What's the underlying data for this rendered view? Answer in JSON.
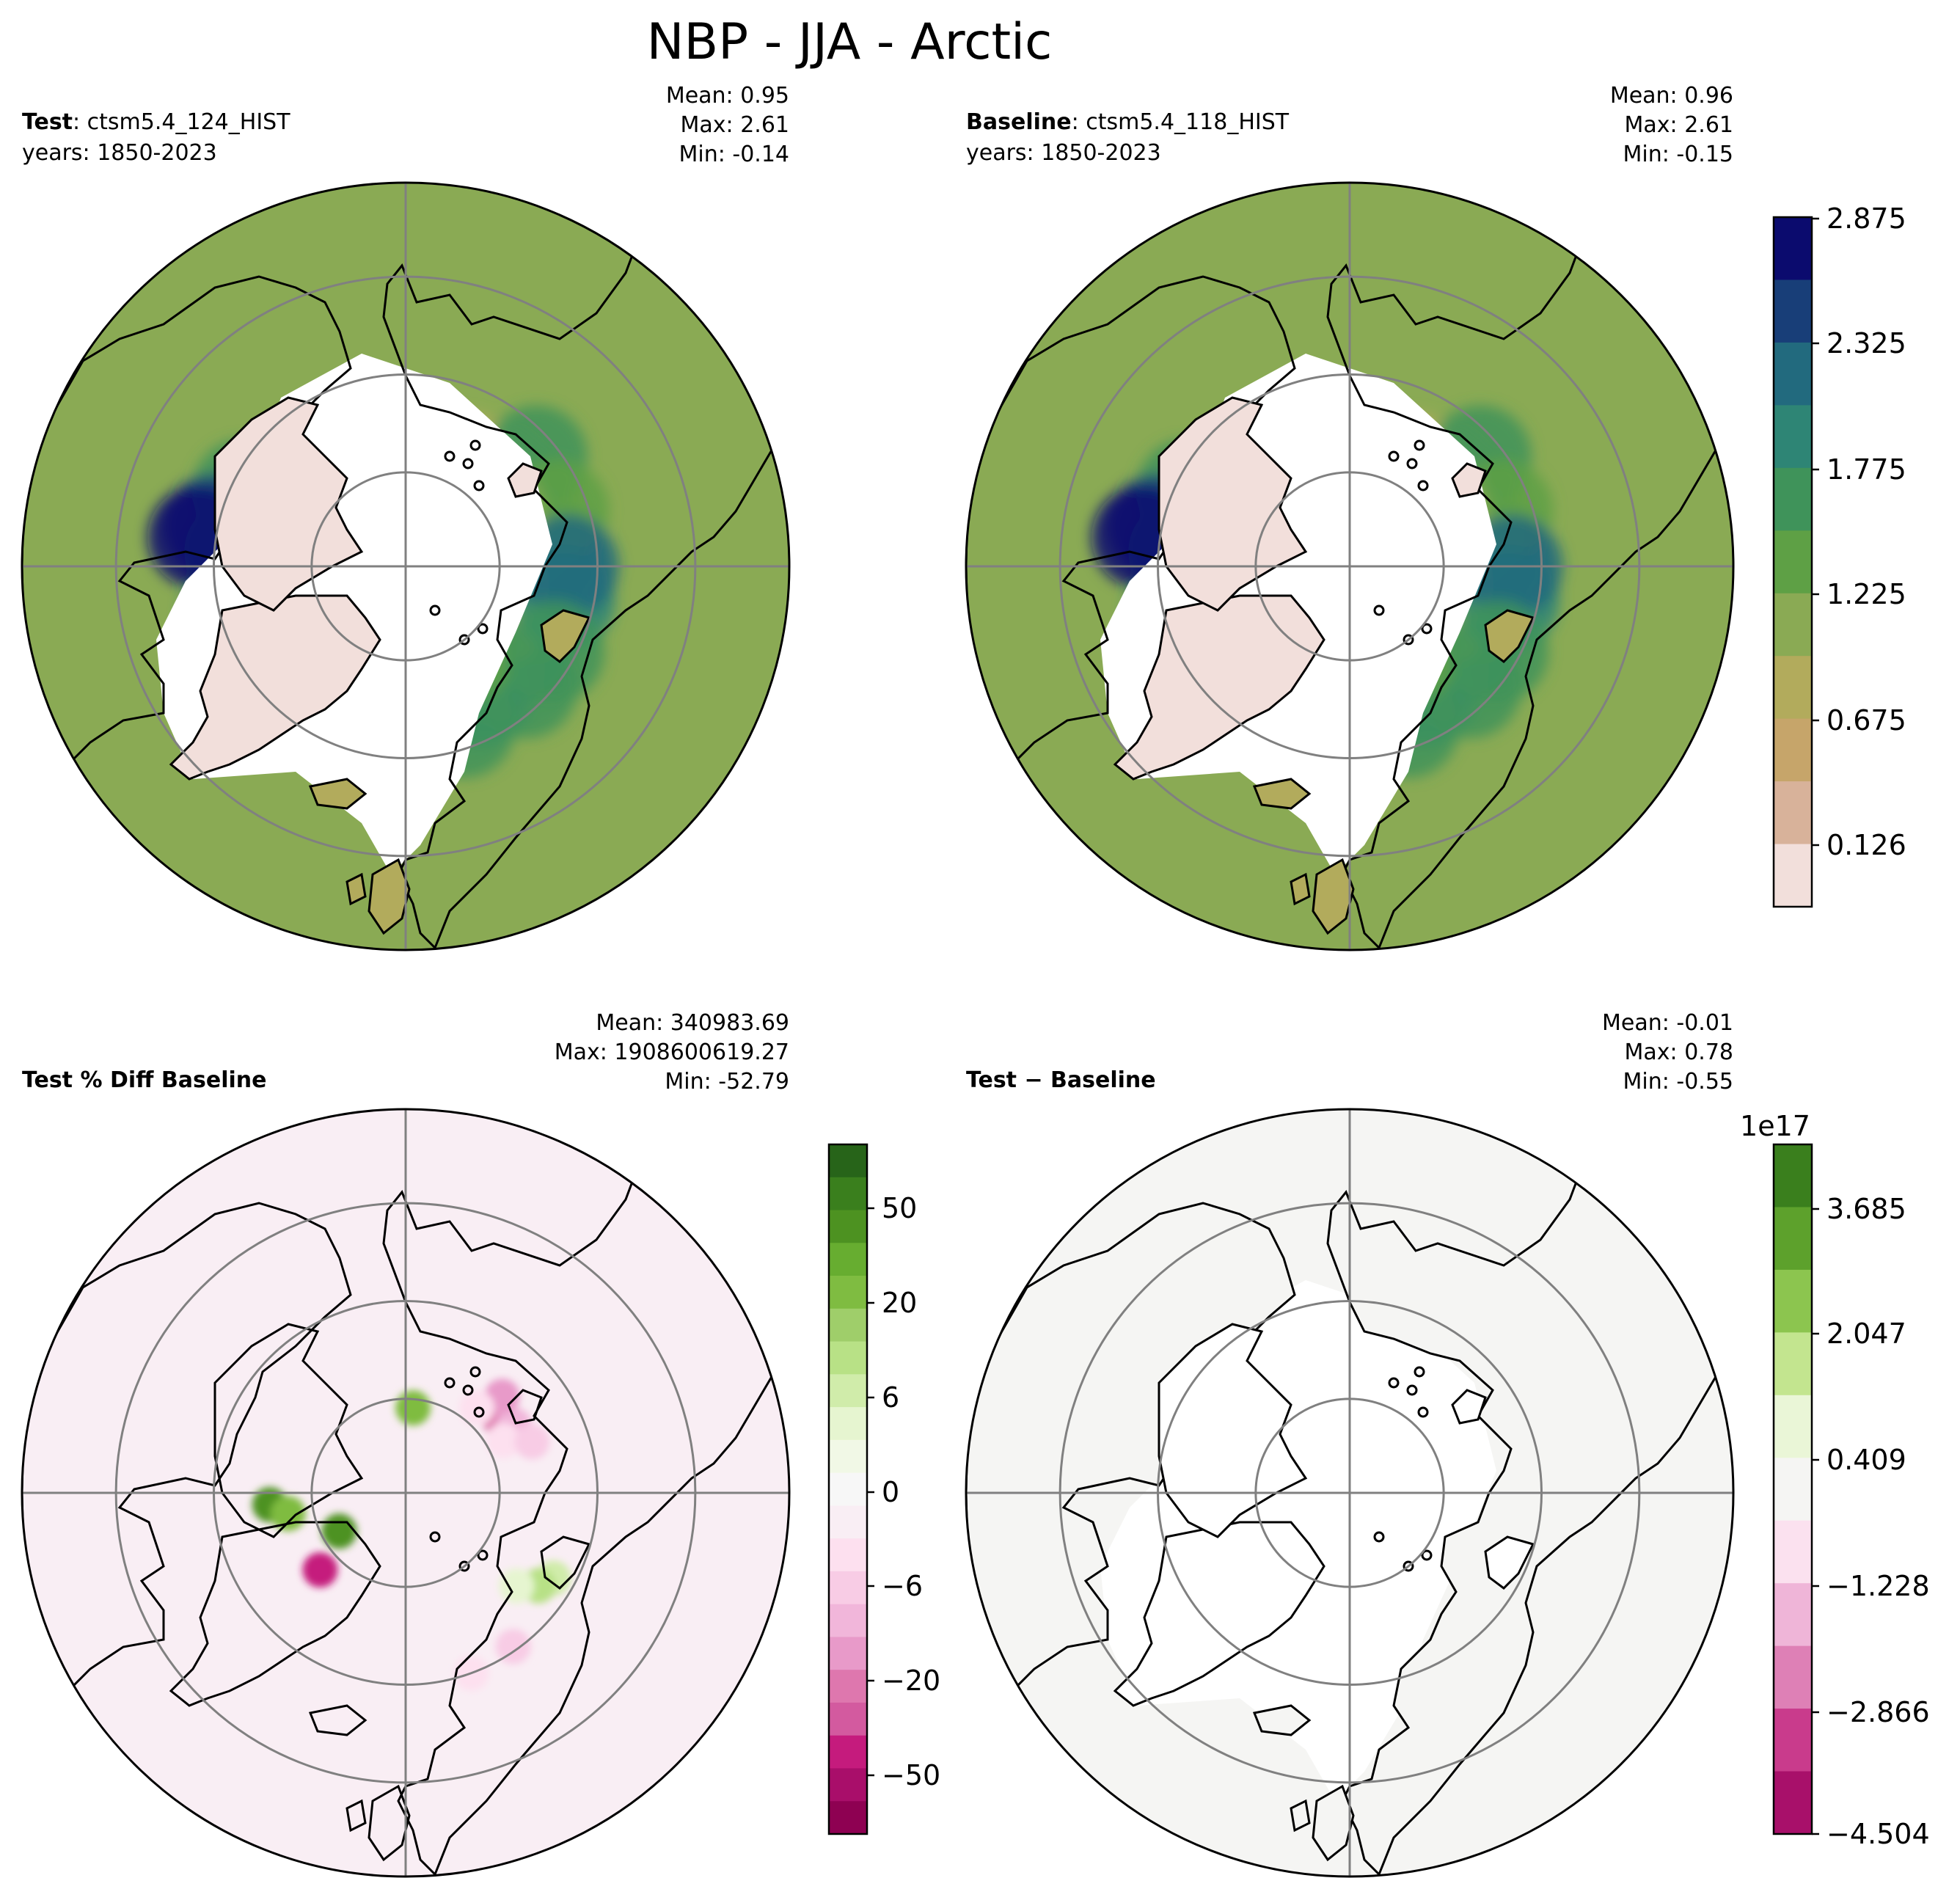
{
  "figure": {
    "title": "NBP - JJA - Arctic"
  },
  "panels": [
    {
      "id": "test",
      "label_bold": "Test",
      "label_rest": ": ctsm5.4_124_HIST",
      "years": "years: 1850-2023",
      "stats": [
        "Mean:  0.95",
        "Max:  2.61",
        "Min: -0.14"
      ],
      "field": "nbp"
    },
    {
      "id": "baseline",
      "label_bold": "Baseline",
      "label_rest": ": ctsm5.4_118_HIST",
      "years": "years: 1850-2023",
      "stats": [
        "Mean:  0.96",
        "Max:  2.61",
        "Min: -0.15"
      ],
      "field": "nbp"
    },
    {
      "id": "pctdiff",
      "label_bold": "Test % Diff Baseline",
      "label_rest": "",
      "years": "",
      "stats": [
        "Mean: 340983.69",
        "Max: 1908600619.27",
        "Min: -52.79"
      ],
      "field": "pct"
    },
    {
      "id": "diff",
      "label_bold": "Test",
      "label_rest": " − Baseline",
      "label_rest_bold": true,
      "years": "",
      "stats": [
        "Mean: -0.01",
        "Max:  0.78",
        "Min: -0.55"
      ],
      "field": "diff"
    }
  ],
  "colorbars": [
    {
      "id": "cb-nbp",
      "ticks": [
        "2.875",
        "2.325",
        "1.775",
        "1.225",
        "0.675",
        "0.126"
      ],
      "colors": [
        "#0b0b6e",
        "#183e78",
        "#226a7e",
        "#2e8575",
        "#3f935a",
        "#5ea045",
        "#8aaa54",
        "#b2ab5c",
        "#c6a56a",
        "#d8b29a",
        "#f2dfdb"
      ],
      "offset_label": ""
    },
    {
      "id": "cb-pct",
      "ticks": [
        "50",
        "20",
        "6",
        "0",
        "−6",
        "−20",
        "−50"
      ],
      "colors": [
        "#276419",
        "#3a7f1d",
        "#4d9221",
        "#67ad30",
        "#7fbc41",
        "#9fce6a",
        "#b8e186",
        "#d0ecaa",
        "#e6f5d0",
        "#f1f8e6",
        "#f7f7f7",
        "#f9eef4",
        "#fde0ef",
        "#f8cce5",
        "#f1b6da",
        "#e89ac9",
        "#de77ae",
        "#d35a9f",
        "#c51b7d",
        "#a90e6a",
        "#8e0152"
      ],
      "offset_label": ""
    },
    {
      "id": "cb-diff",
      "ticks": [
        "3.685",
        "2.047",
        "0.409",
        "−1.228",
        "−2.866",
        "−4.504"
      ],
      "colors": [
        "#3a7f1d",
        "#5da12c",
        "#8cc54f",
        "#c3e58f",
        "#eaf6d7",
        "#f5f5f3",
        "#fbe1ef",
        "#efb5d8",
        "#de80b6",
        "#c93b8c",
        "#a8106a"
      ],
      "offset_label": "1e17"
    }
  ],
  "map_colors": {
    "nbp_palette": [
      "#f2dfdb",
      "#d8b29a",
      "#c6a56a",
      "#b2ab5c",
      "#8aaa54",
      "#5ea045",
      "#3f935a",
      "#2e8575",
      "#226a7e",
      "#183e78",
      "#0b0b6e"
    ],
    "pct_background": "#f9eef4",
    "pct_green": "#f1f8e6",
    "diff_land": "#f5f5f3",
    "grid": "#808080",
    "coast": "#000000"
  },
  "map_features": {
    "nbp_blobs": [
      {
        "lon": 320,
        "lat": 52,
        "v": 5
      },
      {
        "lon": 300,
        "lat": 55,
        "v": 6
      },
      {
        "lon": 280,
        "lat": 56,
        "v": 5
      },
      {
        "lon": 285,
        "lat": 48,
        "v": 7
      },
      {
        "lon": 265,
        "lat": 50,
        "v": 6
      },
      {
        "lon": 250,
        "lat": 55,
        "v": 6
      },
      {
        "lon": 240,
        "lat": 58,
        "v": 5
      },
      {
        "lon": 245,
        "lat": 48,
        "v": 6
      },
      {
        "lon": 258,
        "lat": 44,
        "v": 9
      },
      {
        "lon": 262,
        "lat": 41,
        "v": 10
      },
      {
        "lon": 230,
        "lat": 62,
        "v": 5
      },
      {
        "lon": 215,
        "lat": 62,
        "v": 4
      },
      {
        "lon": 205,
        "lat": 66,
        "v": 3
      },
      {
        "lon": 235,
        "lat": 66,
        "v": 3
      },
      {
        "lon": 270,
        "lat": 62,
        "v": 3
      },
      {
        "lon": 300,
        "lat": 64,
        "v": 2
      },
      {
        "lon": 330,
        "lat": 62,
        "v": 3
      },
      {
        "lon": 345,
        "lat": 64,
        "v": 4
      },
      {
        "lon": 15,
        "lat": 60,
        "v": 6
      },
      {
        "lon": 25,
        "lat": 62,
        "v": 6
      },
      {
        "lon": 30,
        "lat": 55,
        "v": 7
      },
      {
        "lon": 40,
        "lat": 58,
        "v": 7
      },
      {
        "lon": 55,
        "lat": 57,
        "v": 7
      },
      {
        "lon": 20,
        "lat": 50,
        "v": 6
      },
      {
        "lon": 45,
        "lat": 50,
        "v": 6
      },
      {
        "lon": 70,
        "lat": 58,
        "v": 6
      },
      {
        "lon": 85,
        "lat": 60,
        "v": 7
      },
      {
        "lon": 95,
        "lat": 56,
        "v": 8
      },
      {
        "lon": 105,
        "lat": 60,
        "v": 6
      },
      {
        "lon": 120,
        "lat": 58,
        "v": 5
      },
      {
        "lon": 135,
        "lat": 60,
        "v": 4
      },
      {
        "lon": 150,
        "lat": 62,
        "v": 3
      },
      {
        "lon": 165,
        "lat": 64,
        "v": 3
      },
      {
        "lon": 175,
        "lat": 62,
        "v": 3
      },
      {
        "lon": 130,
        "lat": 50,
        "v": 6
      },
      {
        "lon": 110,
        "lat": 52,
        "v": 5
      },
      {
        "lon": 60,
        "lat": 66,
        "v": 4
      },
      {
        "lon": 80,
        "lat": 68,
        "v": 3
      },
      {
        "lon": 100,
        "lat": 68,
        "v": 4
      },
      {
        "lon": 120,
        "lat": 66,
        "v": 4
      },
      {
        "lon": 35,
        "lat": 66,
        "v": 5
      },
      {
        "lon": 8,
        "lat": 62,
        "v": 4
      },
      {
        "lon": 78,
        "lat": 52,
        "v": 7
      },
      {
        "lon": 90,
        "lat": 52,
        "v": 8
      },
      {
        "lon": 60,
        "lat": 50,
        "v": 6
      }
    ],
    "pct_spots": [
      {
        "lon": 128,
        "lat": 62,
        "c": "#de77ae"
      },
      {
        "lon": 122,
        "lat": 60,
        "c": "#f1b6da"
      },
      {
        "lon": 135,
        "lat": 58,
        "c": "#e89ac9"
      },
      {
        "lon": 118,
        "lat": 64,
        "c": "#fde0ef"
      },
      {
        "lon": 140,
        "lat": 64,
        "c": "#fde0ef"
      },
      {
        "lon": 112,
        "lat": 58,
        "c": "#f8cce5"
      },
      {
        "lon": 60,
        "lat": 50,
        "c": "#d0ecaa"
      },
      {
        "lon": 55,
        "lat": 52,
        "c": "#b8e186"
      },
      {
        "lon": 50,
        "lat": 56,
        "c": "#e6f5d0"
      },
      {
        "lon": 275,
        "lat": 58,
        "c": "#4d9221"
      },
      {
        "lon": 280,
        "lat": 62,
        "c": "#7fbc41"
      },
      {
        "lon": 312,
        "lat": 63,
        "c": "#c51b7d"
      },
      {
        "lon": 300,
        "lat": 72,
        "c": "#4d9221"
      },
      {
        "lon": 175,
        "lat": 70,
        "c": "#7fbc41"
      },
      {
        "lon": 20,
        "lat": 45,
        "c": "#fde0ef"
      },
      {
        "lon": 35,
        "lat": 46,
        "c": "#f8cce5"
      }
    ]
  }
}
